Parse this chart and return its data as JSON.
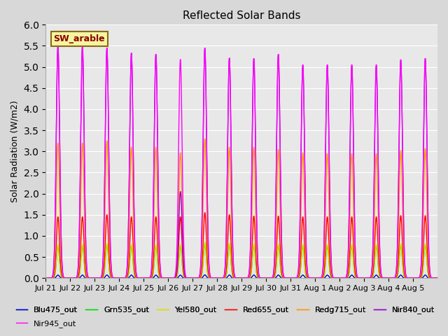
{
  "title": "Reflected Solar Bands",
  "ylabel": "Solar Radiation (W/m2)",
  "xlabel": "",
  "ylim": [
    0,
    6.0
  ],
  "yticks": [
    0.0,
    0.5,
    1.0,
    1.5,
    2.0,
    2.5,
    3.0,
    3.5,
    4.0,
    4.5,
    5.0,
    5.5,
    6.0
  ],
  "background_color": "#d8d8d8",
  "plot_bg_color": "#e8e8e8",
  "annotation_text": "SW_arable",
  "annotation_color": "#8B0000",
  "annotation_bg": "#f5f5a0",
  "annotation_border": "#8B6914",
  "series": [
    {
      "label": "Blu475_out",
      "color": "#0000cc"
    },
    {
      "label": "Grn535_out",
      "color": "#00dd00"
    },
    {
      "label": "Yel580_out",
      "color": "#dddd00"
    },
    {
      "label": "Red655_out",
      "color": "#ff0000"
    },
    {
      "label": "Redg715_out",
      "color": "#ff9900"
    },
    {
      "label": "Nir840_out",
      "color": "#9900cc"
    },
    {
      "label": "Nir945_out",
      "color": "#ff00ff"
    }
  ],
  "x_tick_labels": [
    "Jul 21",
    "Jul 22",
    "Jul 23",
    "Jul 24",
    "Jul 25",
    "Jul 26",
    "Jul 27",
    "Jul 28",
    "Jul 29",
    "Jul 30",
    "Jul 31",
    "Aug 1",
    "Aug 2",
    "Aug 3",
    "Aug 4",
    "Aug 5"
  ],
  "n_days": 16,
  "nir840_peaks": [
    5.5,
    5.5,
    5.45,
    5.33,
    5.3,
    2.05,
    5.45,
    5.21,
    5.2,
    5.3,
    5.05,
    5.05,
    5.05,
    5.05,
    5.17,
    5.2
  ],
  "nir945_peaks": [
    5.5,
    5.5,
    5.45,
    5.33,
    5.3,
    5.18,
    5.45,
    5.21,
    5.2,
    5.3,
    5.05,
    5.05,
    5.05,
    5.05,
    5.17,
    5.2
  ],
  "redg_peaks": [
    3.2,
    3.2,
    3.25,
    3.1,
    3.1,
    2.97,
    3.3,
    3.1,
    3.1,
    3.05,
    2.97,
    2.95,
    2.95,
    2.95,
    3.02,
    3.07
  ],
  "red_peaks": [
    1.45,
    1.45,
    1.5,
    1.45,
    1.45,
    1.45,
    1.55,
    1.5,
    1.47,
    1.47,
    1.45,
    1.45,
    1.45,
    1.45,
    1.48,
    1.48
  ],
  "peak_sigma": 0.07,
  "points_per_day": 200
}
